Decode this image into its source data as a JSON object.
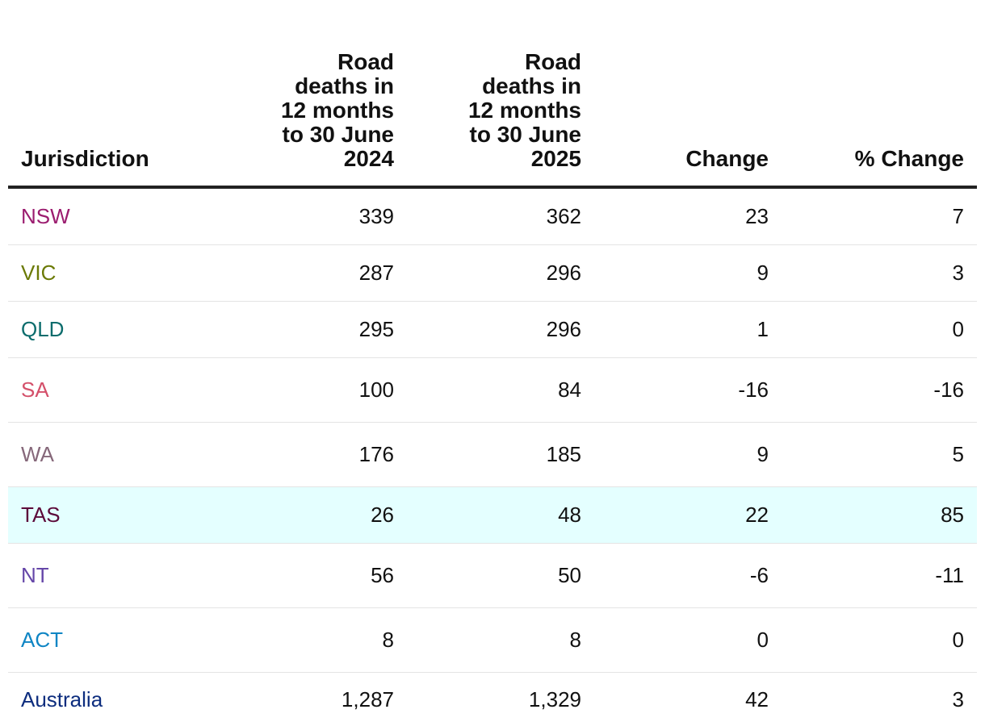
{
  "chart_data": {
    "type": "table",
    "columns": [
      "Jurisdiction",
      "Road deaths in 12 months to 30 June 2024",
      "Road deaths in 12 months to 30 June 2025",
      "Change",
      "% Change"
    ],
    "rows": [
      {
        "jurisdiction": "NSW",
        "y2024": "339",
        "y2025": "362",
        "change": "23",
        "pct_change": "7",
        "color": "#9b1c6f",
        "highlight": false
      },
      {
        "jurisdiction": "VIC",
        "y2024": "287",
        "y2025": "296",
        "change": "9",
        "pct_change": "3",
        "color": "#6b7a06",
        "highlight": false
      },
      {
        "jurisdiction": "QLD",
        "y2024": "295",
        "y2025": "296",
        "change": "1",
        "pct_change": "0",
        "color": "#0b6c6c",
        "highlight": false
      },
      {
        "jurisdiction": "SA",
        "y2024": "100",
        "y2025": "84",
        "change": "-16",
        "pct_change": "-16",
        "color": "#d4506a",
        "highlight": false
      },
      {
        "jurisdiction": "WA",
        "y2024": "176",
        "y2025": "185",
        "change": "9",
        "pct_change": "5",
        "color": "#86687a",
        "highlight": false
      },
      {
        "jurisdiction": "TAS",
        "y2024": "26",
        "y2025": "48",
        "change": "22",
        "pct_change": "85",
        "color": "#5c0a3a",
        "highlight": true
      },
      {
        "jurisdiction": "NT",
        "y2024": "56",
        "y2025": "50",
        "change": "-6",
        "pct_change": "-11",
        "color": "#6546a8",
        "highlight": false
      },
      {
        "jurisdiction": "ACT",
        "y2024": "8",
        "y2025": "8",
        "change": "0",
        "pct_change": "0",
        "color": "#0f85c4",
        "highlight": false
      },
      {
        "jurisdiction": "Australia",
        "y2024": "1,287",
        "y2025": "1,329",
        "change": "42",
        "pct_change": "3",
        "color": "#0d2d7e",
        "highlight": false
      }
    ],
    "highlight_color": "#e4ffff"
  }
}
